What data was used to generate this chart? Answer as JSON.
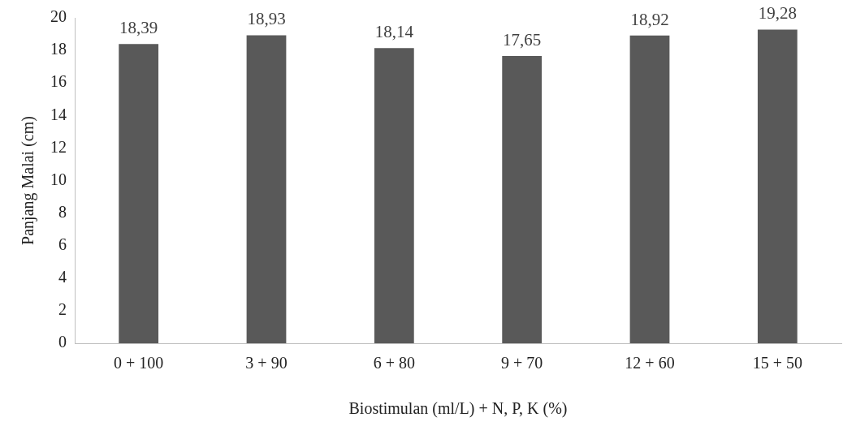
{
  "chart_data": {
    "type": "bar",
    "categories": [
      "0 + 100",
      "3 + 90",
      "6 + 80",
      "9 + 70",
      "12 + 60",
      "15 + 50"
    ],
    "values": [
      18.39,
      18.93,
      18.14,
      17.65,
      18.92,
      19.28
    ],
    "value_labels": [
      "18,39",
      "18,93",
      "18,14",
      "17,65",
      "18,92",
      "19,28"
    ],
    "color": "#595959",
    "xlabel": "Biostimulan (ml/L) + N, P, K (%)",
    "ylabel": "Panjang Malai (cm)",
    "ylim": [
      0,
      20
    ],
    "yticks": [
      0,
      2,
      4,
      6,
      8,
      10,
      12,
      14,
      16,
      18,
      20
    ],
    "grid": false,
    "legend": false
  }
}
